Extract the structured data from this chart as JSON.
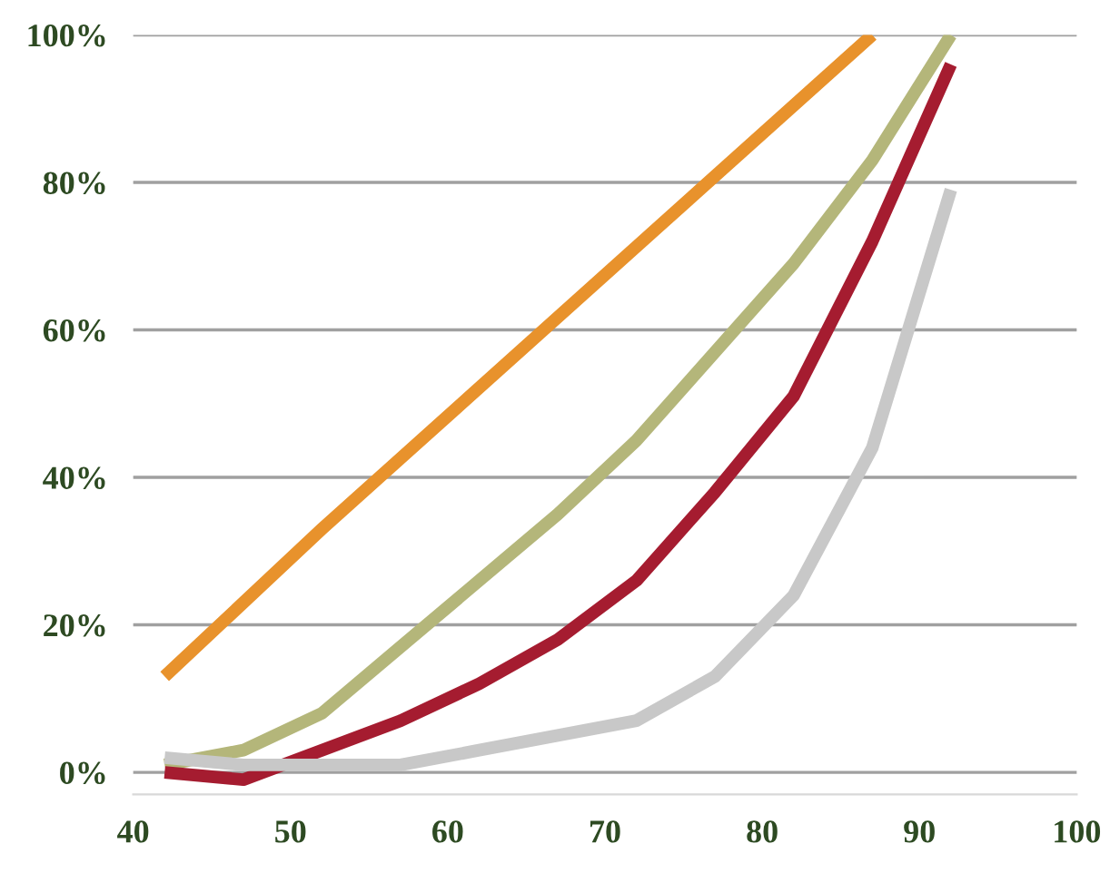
{
  "chart_data": {
    "type": "line",
    "x": [
      42,
      47,
      52,
      57,
      62,
      67,
      72,
      77,
      82,
      87,
      92
    ],
    "series": [
      {
        "color": "#e8922c",
        "x": [
          42,
          52,
          87
        ],
        "values": [
          13,
          33,
          100
        ]
      },
      {
        "color": "#b4b67a",
        "values": [
          1,
          3,
          8,
          17,
          26,
          35,
          45,
          57,
          69,
          83,
          100
        ]
      },
      {
        "color": "#a51c30",
        "values": [
          0,
          -1,
          3,
          7,
          12,
          18,
          26,
          38,
          51,
          72,
          96
        ]
      },
      {
        "color": "#c8c8c8",
        "values": [
          2,
          1,
          1,
          1,
          3,
          5,
          7,
          13,
          24,
          44,
          79
        ]
      }
    ],
    "xlim": [
      40,
      100
    ],
    "xticks": [
      40,
      50,
      60,
      70,
      80,
      90,
      100
    ],
    "ylim": [
      -3,
      100
    ],
    "yticks": [
      {
        "value": 0,
        "label": "0%"
      },
      {
        "value": 20,
        "label": "20%"
      },
      {
        "value": 40,
        "label": "40%"
      },
      {
        "value": 60,
        "label": "60%"
      },
      {
        "value": 80,
        "label": "80%"
      },
      {
        "value": 100,
        "label": "100%"
      }
    ],
    "grid": "y",
    "marker": "none",
    "line_style": "solid",
    "legend": false
  }
}
